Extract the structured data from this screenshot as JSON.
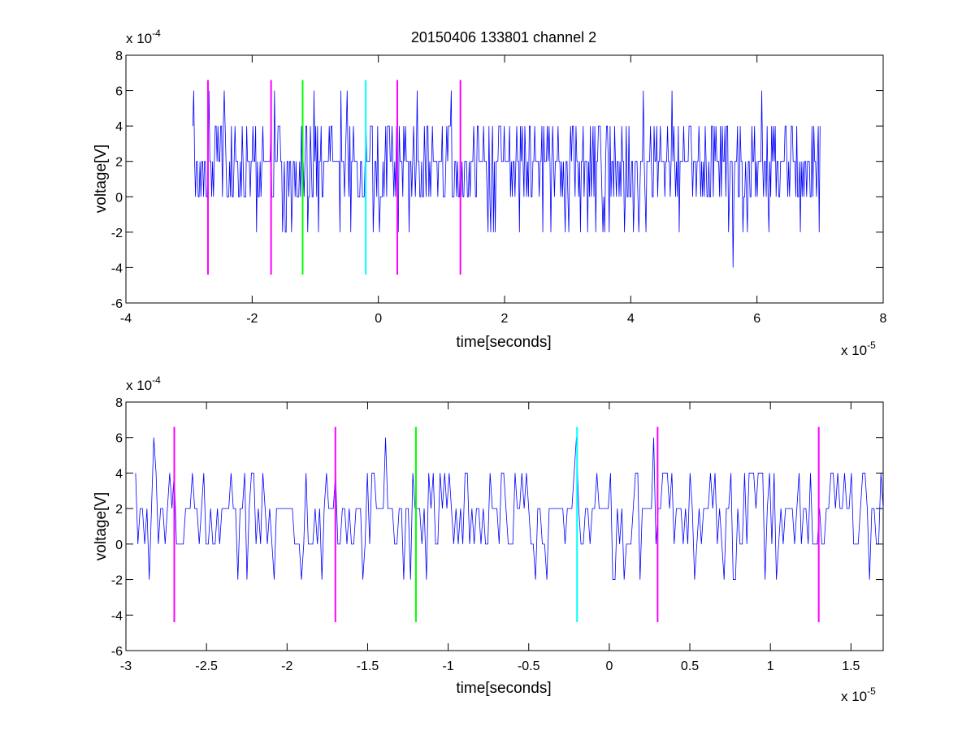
{
  "figure": {
    "title": "20150406 133801 channel 2"
  },
  "colors": {
    "signal": "#0000ff",
    "marker_magenta": "#ff00ff",
    "marker_green": "#00ff00",
    "marker_cyan": "#00ffff",
    "axes": "#000000",
    "background": "#ffffff"
  },
  "chart_data": [
    {
      "type": "line",
      "title": "20150406 133801 channel 2",
      "xlabel": "time[seconds]",
      "ylabel": "voltage[V]",
      "x_exponent": "x 10",
      "x_exponent_power": "-5",
      "y_exponent": "x 10",
      "y_exponent_power": "-4",
      "xlim": [
        -4,
        8
      ],
      "ylim": [
        -6,
        8
      ],
      "xticks": [
        "-4",
        "-2",
        "0",
        "2",
        "4",
        "6",
        "8"
      ],
      "yticks": [
        "-6",
        "-4",
        "-2",
        "0",
        "2",
        "4",
        "6",
        "8"
      ],
      "grid": false,
      "signal": {
        "x_start": -2.94,
        "x_end": 7.0,
        "y_values_in_1e-4_V": "quantized noise trace between -4 and 6, mostly 0, 2 and 4",
        "min": -4,
        "max": 6
      },
      "markers": [
        {
          "x": -2.7,
          "color": "magenta",
          "y_range": [
            -4.4,
            6.6
          ]
        },
        {
          "x": -1.7,
          "color": "magenta",
          "y_range": [
            -4.4,
            6.6
          ]
        },
        {
          "x": -1.2,
          "color": "green",
          "y_range": [
            -4.4,
            6.6
          ]
        },
        {
          "x": -0.2,
          "color": "cyan",
          "y_range": [
            -4.4,
            6.6
          ]
        },
        {
          "x": 0.3,
          "color": "magenta",
          "y_range": [
            -4.4,
            6.6
          ]
        },
        {
          "x": 1.3,
          "color": "magenta",
          "y_range": [
            -4.4,
            6.6
          ]
        }
      ]
    },
    {
      "type": "line",
      "title": "",
      "xlabel": "time[seconds]",
      "ylabel": "voltage[V]",
      "x_exponent": "x 10",
      "x_exponent_power": "-5",
      "y_exponent": "x 10",
      "y_exponent_power": "-4",
      "xlim": [
        -3.0,
        1.7
      ],
      "ylim": [
        -6,
        8
      ],
      "xticks": [
        "-3",
        "-2.5",
        "-2",
        "-1.5",
        "-1",
        "-0.5",
        "0",
        "0.5",
        "1",
        "1.5"
      ],
      "xtick_values": [
        -3,
        -2.5,
        -2,
        -1.5,
        -1,
        -0.5,
        0,
        0.5,
        1,
        1.5
      ],
      "yticks": [
        "-6",
        "-4",
        "-2",
        "0",
        "2",
        "4",
        "6",
        "8"
      ],
      "grid": false,
      "signal": {
        "x_start": -2.94,
        "x_end": 1.7,
        "min": -2,
        "max": 6
      },
      "markers": [
        {
          "x": -2.7,
          "color": "magenta",
          "y_range": [
            -4.4,
            6.6
          ]
        },
        {
          "x": -1.7,
          "color": "magenta",
          "y_range": [
            -4.4,
            6.6
          ]
        },
        {
          "x": -1.2,
          "color": "green",
          "y_range": [
            -4.4,
            6.6
          ]
        },
        {
          "x": -0.2,
          "color": "cyan",
          "y_range": [
            -4.4,
            6.6
          ]
        },
        {
          "x": 0.3,
          "color": "magenta",
          "y_range": [
            -4.4,
            6.6
          ]
        },
        {
          "x": 1.3,
          "color": "magenta",
          "y_range": [
            -4.4,
            6.6
          ]
        }
      ]
    }
  ]
}
